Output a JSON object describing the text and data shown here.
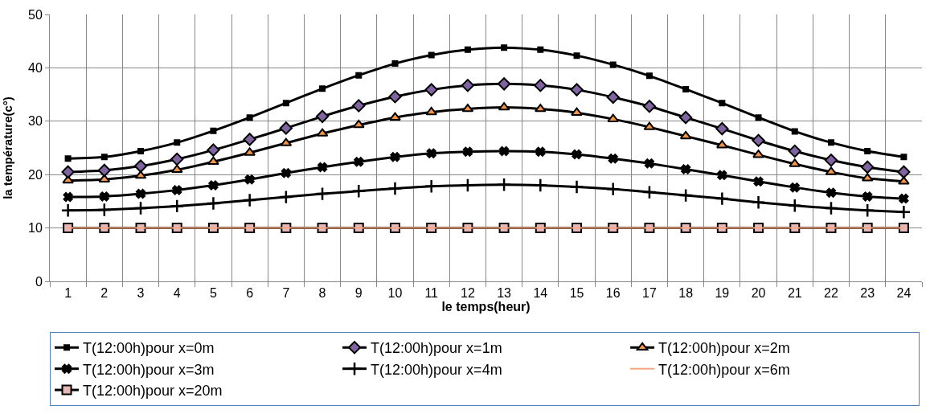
{
  "chart_data": {
    "type": "line",
    "xlabel": "le temps(heur)",
    "ylabel": "la température(c°)",
    "x": [
      1,
      2,
      3,
      4,
      5,
      6,
      7,
      8,
      9,
      10,
      11,
      12,
      13,
      14,
      15,
      16,
      17,
      18,
      19,
      20,
      21,
      22,
      23,
      24
    ],
    "xlim": [
      0.5,
      24.5
    ],
    "xticks": [
      1,
      2,
      3,
      4,
      5,
      6,
      7,
      8,
      9,
      10,
      11,
      12,
      13,
      14,
      15,
      16,
      17,
      18,
      19,
      20,
      21,
      22,
      23,
      24
    ],
    "ylim": [
      0,
      50
    ],
    "yticks": [
      0,
      10,
      20,
      30,
      40,
      50
    ],
    "grid": true,
    "legend": "bottom",
    "series": [
      {
        "name": "T(12:00h)pour x=0m",
        "color": "#000000",
        "marker": "square",
        "values": [
          23.0,
          23.3,
          24.4,
          26.0,
          28.2,
          30.7,
          33.4,
          36.1,
          38.6,
          40.8,
          42.4,
          43.4,
          43.8,
          43.4,
          42.3,
          40.6,
          38.5,
          36.0,
          33.4,
          30.7,
          28.1,
          26.0,
          24.4,
          23.3
        ]
      },
      {
        "name": "T(12:00h)pour x=1m",
        "color": "#8064a2",
        "marker": "diamond",
        "values": [
          20.5,
          20.8,
          21.6,
          22.9,
          24.6,
          26.6,
          28.7,
          30.9,
          32.9,
          34.6,
          35.9,
          36.7,
          37.0,
          36.7,
          35.9,
          34.5,
          32.8,
          30.7,
          28.6,
          26.4,
          24.4,
          22.7,
          21.4,
          20.5
        ]
      },
      {
        "name": "T(12:00h)pour x=2m",
        "color": "#f79646",
        "marker": "triangle",
        "values": [
          18.9,
          19.1,
          19.8,
          20.9,
          22.4,
          24.1,
          25.9,
          27.7,
          29.3,
          30.7,
          31.7,
          32.3,
          32.6,
          32.3,
          31.6,
          30.4,
          28.9,
          27.2,
          25.5,
          23.7,
          22.0,
          20.5,
          19.3,
          18.7
        ]
      },
      {
        "name": "T(12:00h)pour x=3m",
        "color": "#000000",
        "marker": "cross",
        "values": [
          15.8,
          15.9,
          16.4,
          17.1,
          18.0,
          19.1,
          20.3,
          21.4,
          22.4,
          23.3,
          24.0,
          24.3,
          24.4,
          24.3,
          23.8,
          23.0,
          22.1,
          21.0,
          19.9,
          18.7,
          17.6,
          16.6,
          15.9,
          15.5
        ]
      },
      {
        "name": "T(12:00h)pour x=4m",
        "color": "#000000",
        "marker": "cross",
        "values": [
          13.3,
          13.4,
          13.7,
          14.1,
          14.6,
          15.2,
          15.8,
          16.4,
          16.9,
          17.4,
          17.8,
          18.0,
          18.1,
          18.0,
          17.7,
          17.3,
          16.7,
          16.1,
          15.5,
          14.8,
          14.2,
          13.7,
          13.3,
          13.0
        ]
      },
      {
        "name": "T(12:00h)pour x=6m",
        "color": "#f4a582",
        "marker": "none",
        "values": [
          10,
          10,
          10,
          10,
          10,
          10,
          10,
          10,
          10,
          10,
          10,
          10,
          10,
          10,
          10,
          10,
          10,
          10,
          10,
          10,
          10,
          10,
          10,
          10
        ]
      },
      {
        "name": "T(12:00h)pour x=20m",
        "color": "#e6b9b8",
        "marker": "square",
        "values": [
          10,
          10,
          10,
          10,
          10,
          10,
          10,
          10,
          10,
          10,
          10,
          10,
          10,
          10,
          10,
          10,
          10,
          10,
          10,
          10,
          10,
          10,
          10,
          10
        ]
      }
    ]
  }
}
